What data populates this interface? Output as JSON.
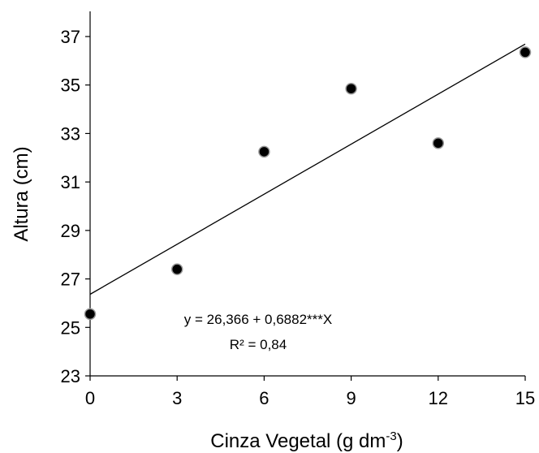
{
  "chart_data": {
    "type": "scatter",
    "xlabel": "Cinza Vegetal (g dm",
    "xlabel_sup": "-3",
    "xlabel_end": ")",
    "ylabel": "Altura (cm)",
    "xlim": [
      0,
      15
    ],
    "ylim": [
      23,
      38
    ],
    "xticks": [
      0,
      3,
      6,
      9,
      12,
      15
    ],
    "yticks": [
      23,
      25,
      27,
      29,
      31,
      33,
      35,
      37
    ],
    "grid": false,
    "points": [
      {
        "x": 0,
        "y": 25.55
      },
      {
        "x": 3,
        "y": 27.4
      },
      {
        "x": 6,
        "y": 32.25
      },
      {
        "x": 9,
        "y": 34.85
      },
      {
        "x": 12,
        "y": 32.6
      },
      {
        "x": 15,
        "y": 36.35
      }
    ],
    "trendline": {
      "intercept": 26.366,
      "slope": 0.6882
    },
    "annotations": {
      "equation": "y = 26,366 + 0,6882***X",
      "r_squared": "R² = 0,84"
    }
  }
}
